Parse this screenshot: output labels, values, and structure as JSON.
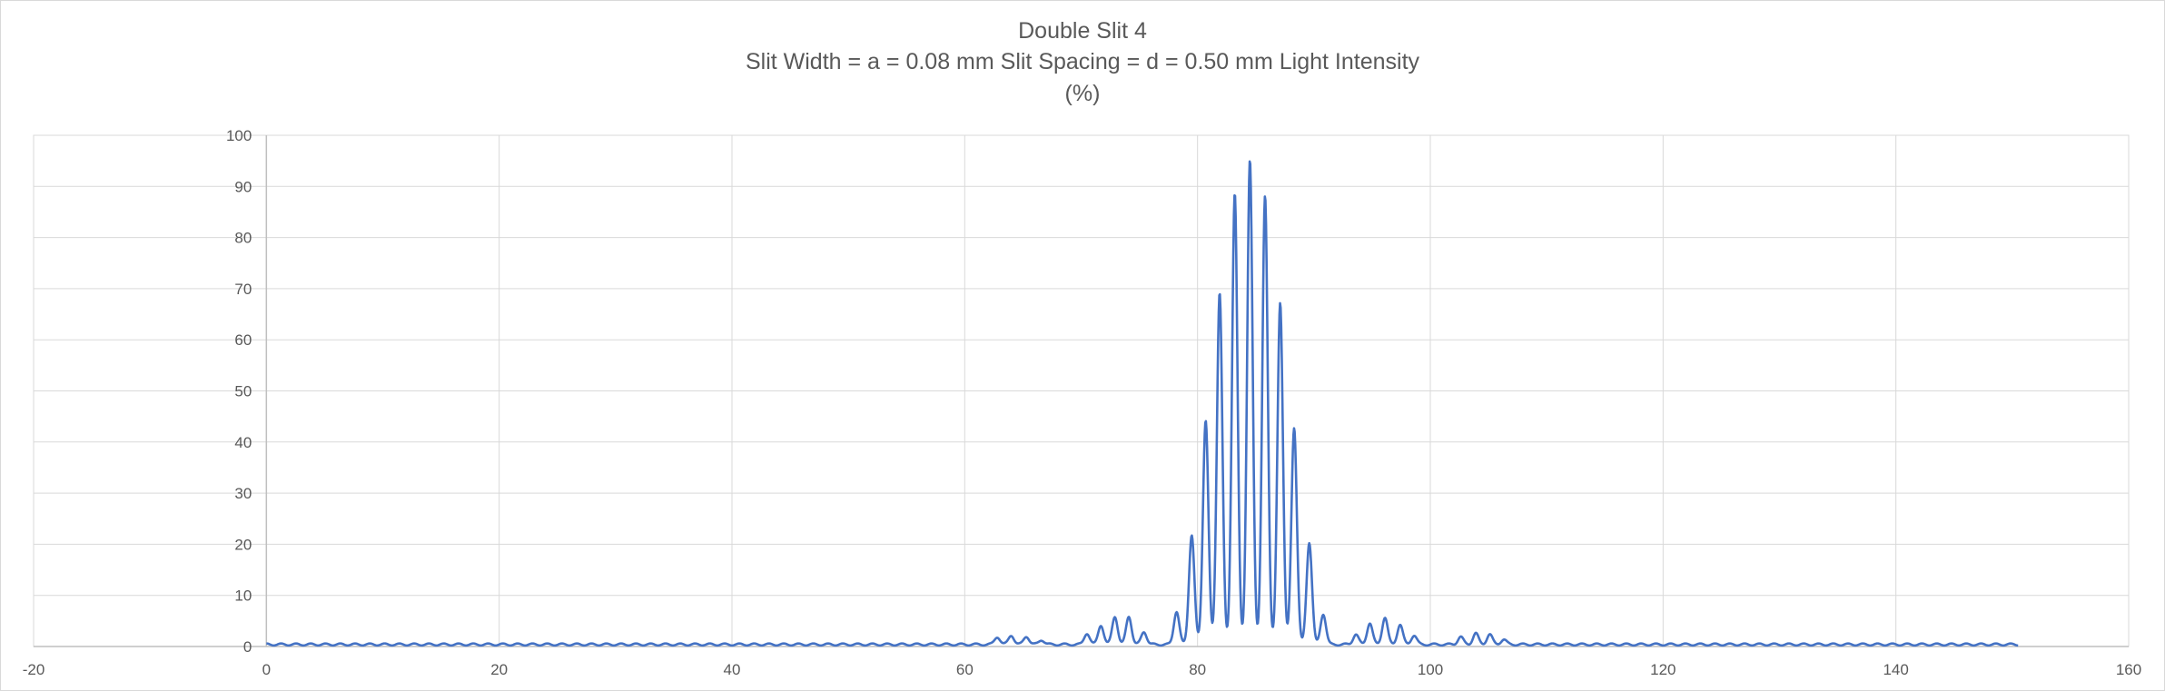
{
  "chart_data": {
    "type": "line",
    "title": "Double Slit 4",
    "subtitle": "Slit Width = a = 0.08 mm Slit Spacing = d = 0.50 mm Light Intensity",
    "subtitle2": "(%)",
    "xlabel": "",
    "ylabel": "",
    "xlim": [
      -20,
      160
    ],
    "ylim": [
      0,
      100
    ],
    "xticks": [
      "-20",
      "0",
      "20",
      "40",
      "60",
      "80",
      "100",
      "120",
      "140",
      "160"
    ],
    "yticks": [
      "0",
      "10",
      "20",
      "30",
      "40",
      "50",
      "60",
      "70",
      "80",
      "90",
      "100"
    ],
    "grid": true,
    "legend": "none",
    "series_color": "#4472c4",
    "x_range": [
      0,
      150.5
    ],
    "series": [
      {
        "values_description": "",
        "peaks": [
          [
            62.8,
            1.5
          ],
          [
            64.0,
            1.8
          ],
          [
            65.3,
            1.6
          ],
          [
            66.6,
            0.9
          ],
          [
            70.5,
            2.2
          ],
          [
            71.7,
            3.8
          ],
          [
            72.9,
            5.5
          ],
          [
            74.1,
            5.5
          ],
          [
            75.4,
            2.5
          ],
          [
            78.2,
            6.5
          ],
          [
            79.5,
            21.5
          ],
          [
            80.7,
            44.0
          ],
          [
            81.9,
            69.0
          ],
          [
            83.2,
            88.5
          ],
          [
            84.5,
            95.0
          ],
          [
            85.8,
            88.0
          ],
          [
            87.1,
            67.0
          ],
          [
            88.3,
            42.5
          ],
          [
            89.6,
            20.0
          ],
          [
            90.8,
            6.0
          ],
          [
            93.6,
            2.0
          ],
          [
            94.8,
            4.2
          ],
          [
            96.1,
            5.3
          ],
          [
            97.4,
            3.9
          ],
          [
            98.6,
            1.8
          ],
          [
            102.6,
            1.5
          ],
          [
            103.9,
            2.2
          ],
          [
            105.1,
            2.0
          ],
          [
            106.3,
            1.0
          ]
        ],
        "baseline": 0.4
      }
    ]
  }
}
